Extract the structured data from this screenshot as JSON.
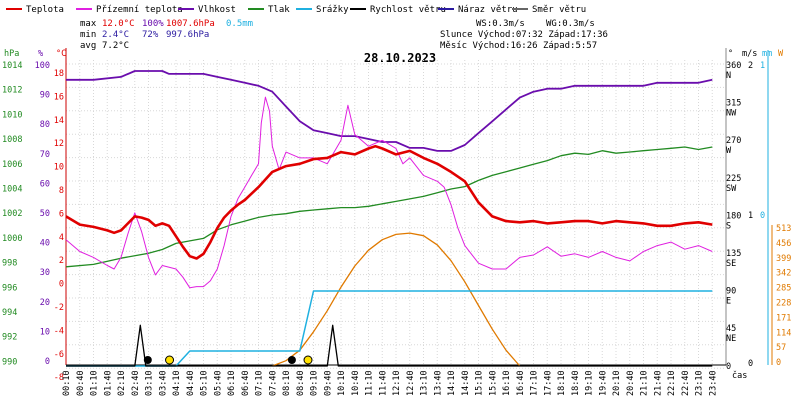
{
  "chart_data": {
    "type": "line",
    "title": "28.10.2023",
    "legend": [
      {
        "name": "Teplota",
        "color": "#e00000"
      },
      {
        "name": "Přízemní teplota",
        "color": "#e020e0"
      },
      {
        "name": "Vlhkost",
        "color": "#6a0dad"
      },
      {
        "name": "Tlak",
        "color": "#228b22"
      },
      {
        "name": "Srážky",
        "color": "#1fb0e0"
      },
      {
        "name": "Rychlost větru",
        "color": "#000000"
      },
      {
        "name": "Náraz větru",
        "color": "#2a1aa0"
      },
      {
        "name": "Směr větru",
        "color": "#666666"
      }
    ],
    "stats": {
      "max_label": "max",
      "max_temp": "12.0°C",
      "max_hum": "100%",
      "max_press": "1007.6hPa",
      "max_rain": "0.5mm",
      "min_label": "min",
      "min_temp": "2.4°C",
      "min_hum": "72%",
      "min_press": "997.6hPa",
      "avg_label": "avg",
      "avg_temp": "7.2°C",
      "ws": "WS:0.3m/s",
      "wg": "WG:0.3m/s",
      "sun": "Slunce Východ:07:32  Západ:17:36",
      "moon": "Měsíc  Východ:16:26  Západ:5:57"
    },
    "axes": {
      "pressure": {
        "unit": "hPa",
        "ticks": [
          "1014",
          "1012",
          "1010",
          "1008",
          "1006",
          "1004",
          "1002",
          "1000",
          "998",
          "996",
          "994",
          "992",
          "990"
        ]
      },
      "humidity": {
        "unit": "%",
        "ticks": [
          "100",
          "90",
          "80",
          "70",
          "60",
          "50",
          "40",
          "30",
          "20",
          "10",
          "0"
        ]
      },
      "temperature": {
        "unit": "°C",
        "ticks": [
          "18",
          "16",
          "14",
          "12",
          "10",
          "8",
          "6",
          "4",
          "2",
          "0",
          "-2",
          "-4",
          "-6",
          "-8"
        ]
      },
      "direction": {
        "unit": "°",
        "ticks": [
          [
            "360",
            "N"
          ],
          [
            "315",
            "NW"
          ],
          [
            "270",
            "W"
          ],
          [
            "225",
            "SW"
          ],
          [
            "180",
            "S"
          ],
          [
            "135",
            "SE"
          ],
          [
            "90",
            "E"
          ],
          [
            "45",
            "NE"
          ],
          [
            "0",
            ""
          ]
        ]
      },
      "wind": {
        "unit": "m/s",
        "ticks": [
          "2",
          "1",
          "0"
        ]
      },
      "rain": {
        "unit": "mm",
        "ticks": [
          "1",
          "0"
        ]
      },
      "solar": {
        "unit": "W",
        "ticks": [
          "513",
          "456",
          "399",
          "342",
          "285",
          "228",
          "171",
          "114",
          "57",
          "0"
        ]
      },
      "time_label": "čas",
      "time_ticks": [
        "00:10",
        "00:40",
        "01:10",
        "01:40",
        "02:10",
        "02:40",
        "03:10",
        "03:40",
        "04:10",
        "04:40",
        "05:10",
        "05:40",
        "06:10",
        "06:40",
        "07:10",
        "07:40",
        "08:10",
        "08:40",
        "09:10",
        "09:40",
        "10:10",
        "10:40",
        "11:10",
        "11:40",
        "12:10",
        "12:40",
        "13:10",
        "13:40",
        "14:10",
        "14:40",
        "15:10",
        "15:40",
        "16:10",
        "16:40",
        "17:10",
        "17:40",
        "18:10",
        "18:40",
        "19:10",
        "19:40",
        "20:10",
        "20:40",
        "21:10",
        "21:40",
        "22:10",
        "22:40",
        "23:10",
        "23:40"
      ]
    },
    "series": {
      "temperature": [
        [
          0,
          6.0
        ],
        [
          1,
          5.3
        ],
        [
          2,
          5.1
        ],
        [
          3,
          4.8
        ],
        [
          3.5,
          4.6
        ],
        [
          4,
          4.8
        ],
        [
          5,
          6.0
        ],
        [
          5.5,
          5.9
        ],
        [
          6,
          5.7
        ],
        [
          6.5,
          5.2
        ],
        [
          7,
          5.4
        ],
        [
          7.5,
          5.2
        ],
        [
          8,
          4.3
        ],
        [
          8.5,
          3.4
        ],
        [
          9,
          2.6
        ],
        [
          9.5,
          2.4
        ],
        [
          10,
          2.8
        ],
        [
          10.5,
          3.8
        ],
        [
          11,
          5.0
        ],
        [
          11.5,
          5.9
        ],
        [
          12,
          6.5
        ],
        [
          12.5,
          7.0
        ],
        [
          13,
          7.4
        ],
        [
          14,
          8.5
        ],
        [
          15,
          9.8
        ],
        [
          16,
          10.3
        ],
        [
          17,
          10.5
        ],
        [
          18,
          10.9
        ],
        [
          19,
          11.0
        ],
        [
          20,
          11.5
        ],
        [
          21,
          11.3
        ],
        [
          22,
          11.8
        ],
        [
          22.5,
          12.0
        ],
        [
          23,
          11.8
        ],
        [
          24,
          11.3
        ],
        [
          25,
          11.6
        ],
        [
          26,
          11.0
        ],
        [
          27,
          10.5
        ],
        [
          28,
          9.8
        ],
        [
          29,
          9.0
        ],
        [
          30,
          7.2
        ],
        [
          31,
          6.0
        ],
        [
          32,
          5.6
        ],
        [
          33,
          5.5
        ],
        [
          34,
          5.6
        ],
        [
          35,
          5.4
        ],
        [
          36,
          5.5
        ],
        [
          37,
          5.6
        ],
        [
          38,
          5.6
        ],
        [
          39,
          5.4
        ],
        [
          40,
          5.6
        ],
        [
          41,
          5.5
        ],
        [
          42,
          5.4
        ],
        [
          43,
          5.2
        ],
        [
          44,
          5.2
        ],
        [
          45,
          5.4
        ],
        [
          46,
          5.5
        ],
        [
          47,
          5.3
        ]
      ],
      "ground_temperature": [
        [
          0,
          4
        ],
        [
          1,
          3.0
        ],
        [
          2,
          2.5
        ],
        [
          3,
          1.8
        ],
        [
          3.5,
          1.5
        ],
        [
          4,
          2.5
        ],
        [
          4.5,
          4.5
        ],
        [
          5,
          6.3
        ],
        [
          5.5,
          4.7
        ],
        [
          6,
          2.5
        ],
        [
          6.5,
          1.0
        ],
        [
          7,
          1.8
        ],
        [
          8,
          1.5
        ],
        [
          8.5,
          0.8
        ],
        [
          9,
          -0.1
        ],
        [
          9.5,
          0.0
        ],
        [
          10,
          0.0
        ],
        [
          10.5,
          0.5
        ],
        [
          11,
          1.5
        ],
        [
          11.5,
          3.5
        ],
        [
          12,
          6.0
        ],
        [
          12.5,
          7.5
        ],
        [
          13,
          8.5
        ],
        [
          13.5,
          9.5
        ],
        [
          14,
          10.5
        ],
        [
          14.2,
          14.0
        ],
        [
          14.5,
          16.2
        ],
        [
          14.8,
          15.0
        ],
        [
          15,
          12.0
        ],
        [
          15.5,
          10.0
        ],
        [
          16,
          11.5
        ],
        [
          17,
          11.0
        ],
        [
          18,
          11.0
        ],
        [
          19,
          10.5
        ],
        [
          20,
          12.5
        ],
        [
          20.5,
          15.5
        ],
        [
          20.8,
          14.0
        ],
        [
          21,
          13.0
        ],
        [
          22,
          12.0
        ],
        [
          23,
          12.5
        ],
        [
          24,
          11.8
        ],
        [
          24.5,
          10.5
        ],
        [
          25,
          11.0
        ],
        [
          26,
          9.5
        ],
        [
          27,
          9.0
        ],
        [
          27.5,
          8.5
        ],
        [
          28,
          7.0
        ],
        [
          28.5,
          5.0
        ],
        [
          29,
          3.5
        ],
        [
          30,
          2.0
        ],
        [
          31,
          1.5
        ],
        [
          32,
          1.5
        ],
        [
          33,
          2.5
        ],
        [
          34,
          2.7
        ],
        [
          35,
          3.4
        ],
        [
          36,
          2.6
        ],
        [
          37,
          2.8
        ],
        [
          38,
          2.5
        ],
        [
          39,
          3.0
        ],
        [
          40,
          2.5
        ],
        [
          41,
          2.2
        ],
        [
          42,
          3.0
        ],
        [
          43,
          3.5
        ],
        [
          44,
          3.8
        ],
        [
          45,
          3.2
        ],
        [
          46,
          3.5
        ],
        [
          47,
          3.0
        ]
      ],
      "humidity": [
        [
          0,
          96
        ],
        [
          2,
          96
        ],
        [
          4,
          97
        ],
        [
          5,
          99
        ],
        [
          6,
          99
        ],
        [
          7,
          99
        ],
        [
          7.5,
          98
        ],
        [
          9,
          98
        ],
        [
          10,
          98
        ],
        [
          11,
          97
        ],
        [
          12,
          96
        ],
        [
          13,
          95
        ],
        [
          14,
          94
        ],
        [
          14.5,
          93
        ],
        [
          15,
          92
        ],
        [
          16,
          87
        ],
        [
          17,
          82
        ],
        [
          18,
          79
        ],
        [
          19,
          78
        ],
        [
          20,
          77
        ],
        [
          21,
          77
        ],
        [
          22,
          76
        ],
        [
          23,
          75
        ],
        [
          24,
          75
        ],
        [
          25,
          73
        ],
        [
          26,
          73
        ],
        [
          27,
          72
        ],
        [
          28,
          72
        ],
        [
          29,
          74
        ],
        [
          30,
          78
        ],
        [
          31,
          82
        ],
        [
          32,
          86
        ],
        [
          33,
          90
        ],
        [
          34,
          92
        ],
        [
          35,
          93
        ],
        [
          36,
          93
        ],
        [
          37,
          94
        ],
        [
          38,
          94
        ],
        [
          39,
          94
        ],
        [
          40,
          94
        ],
        [
          41,
          94
        ],
        [
          42,
          94
        ],
        [
          43,
          95
        ],
        [
          44,
          95
        ],
        [
          45,
          95
        ],
        [
          46,
          95
        ],
        [
          47,
          96
        ]
      ],
      "pressure": [
        [
          0,
          997.9
        ],
        [
          2,
          998.1
        ],
        [
          4,
          998.6
        ],
        [
          6,
          999.0
        ],
        [
          7,
          999.3
        ],
        [
          8,
          999.8
        ],
        [
          9,
          1000.0
        ],
        [
          10,
          1000.2
        ],
        [
          11,
          1000.9
        ],
        [
          12,
          1001.3
        ],
        [
          13,
          1001.6
        ],
        [
          14,
          1001.9
        ],
        [
          15,
          1002.1
        ],
        [
          16,
          1002.2
        ],
        [
          17,
          1002.4
        ],
        [
          18,
          1002.5
        ],
        [
          19,
          1002.6
        ],
        [
          20,
          1002.7
        ],
        [
          21,
          1002.7
        ],
        [
          22,
          1002.8
        ],
        [
          23,
          1003.0
        ],
        [
          24,
          1003.2
        ],
        [
          25,
          1003.4
        ],
        [
          26,
          1003.6
        ],
        [
          27,
          1003.9
        ],
        [
          28,
          1004.2
        ],
        [
          29,
          1004.4
        ],
        [
          30,
          1004.9
        ],
        [
          31,
          1005.3
        ],
        [
          32,
          1005.6
        ],
        [
          33,
          1005.9
        ],
        [
          34,
          1006.2
        ],
        [
          35,
          1006.5
        ],
        [
          36,
          1006.9
        ],
        [
          37,
          1007.1
        ],
        [
          38,
          1007.0
        ],
        [
          39,
          1007.3
        ],
        [
          40,
          1007.1
        ],
        [
          41,
          1007.2
        ],
        [
          42,
          1007.3
        ],
        [
          43,
          1007.4
        ],
        [
          44,
          1007.5
        ],
        [
          45,
          1007.6
        ],
        [
          46,
          1007.4
        ],
        [
          47,
          1007.6
        ]
      ],
      "rain": [
        [
          0,
          0
        ],
        [
          8,
          0
        ],
        [
          9,
          0.1
        ],
        [
          17,
          0.1
        ],
        [
          18,
          0.5
        ],
        [
          47,
          0.5
        ]
      ],
      "wind_speed": [
        [
          0,
          0
        ],
        [
          5,
          0
        ],
        [
          5.4,
          0.55
        ],
        [
          5.8,
          0
        ],
        [
          19,
          0
        ],
        [
          19.4,
          0.55
        ],
        [
          19.8,
          0
        ],
        [
          47,
          0
        ]
      ],
      "solar": [
        [
          15,
          0
        ],
        [
          16,
          20
        ],
        [
          17,
          60
        ],
        [
          18,
          130
        ],
        [
          19,
          210
        ],
        [
          20,
          300
        ],
        [
          21,
          380
        ],
        [
          22,
          440
        ],
        [
          23,
          480
        ],
        [
          24,
          500
        ],
        [
          25,
          505
        ],
        [
          26,
          495
        ],
        [
          27,
          460
        ],
        [
          28,
          400
        ],
        [
          29,
          320
        ],
        [
          30,
          230
        ],
        [
          31,
          140
        ],
        [
          32,
          60
        ],
        [
          33,
          0
        ]
      ],
      "wind_direction": [
        [
          0,
          14
        ],
        [
          1,
          14
        ],
        [
          2,
          14
        ],
        [
          3,
          14
        ],
        [
          4,
          14
        ],
        [
          5,
          14
        ],
        [
          6,
          14
        ],
        [
          6.5,
          14
        ],
        [
          7,
          14
        ],
        [
          8,
          14
        ],
        [
          9,
          14
        ],
        [
          10,
          14
        ],
        [
          11,
          14
        ],
        [
          12,
          14
        ],
        [
          13,
          14
        ],
        [
          14,
          14
        ],
        [
          15,
          14
        ],
        [
          16,
          14
        ],
        [
          17,
          14
        ],
        [
          18,
          14
        ],
        [
          19,
          14
        ],
        [
          20,
          14
        ],
        [
          21,
          14
        ],
        [
          22,
          14
        ],
        [
          23,
          14
        ],
        [
          24,
          14
        ],
        [
          25,
          14
        ],
        [
          26,
          14
        ],
        [
          27,
          14
        ],
        [
          28,
          14
        ],
        [
          29,
          14
        ],
        [
          30,
          14
        ],
        [
          31,
          14
        ],
        [
          32,
          14
        ],
        [
          33,
          14
        ],
        [
          34,
          14
        ],
        [
          35,
          14
        ],
        [
          36,
          14
        ],
        [
          37,
          14
        ],
        [
          38,
          14
        ],
        [
          39,
          14
        ],
        [
          40,
          14
        ],
        [
          41,
          14
        ],
        [
          42,
          14
        ],
        [
          43,
          14
        ],
        [
          44,
          14
        ],
        [
          45,
          14
        ],
        [
          46,
          14
        ],
        [
          47,
          14
        ]
      ]
    },
    "markers": {
      "sunrise": {
        "time": 7.53
      },
      "sunset": {
        "time": 17.6
      },
      "moonrise": {
        "time": 16.43
      },
      "moonset": {
        "time": 5.95
      }
    }
  }
}
